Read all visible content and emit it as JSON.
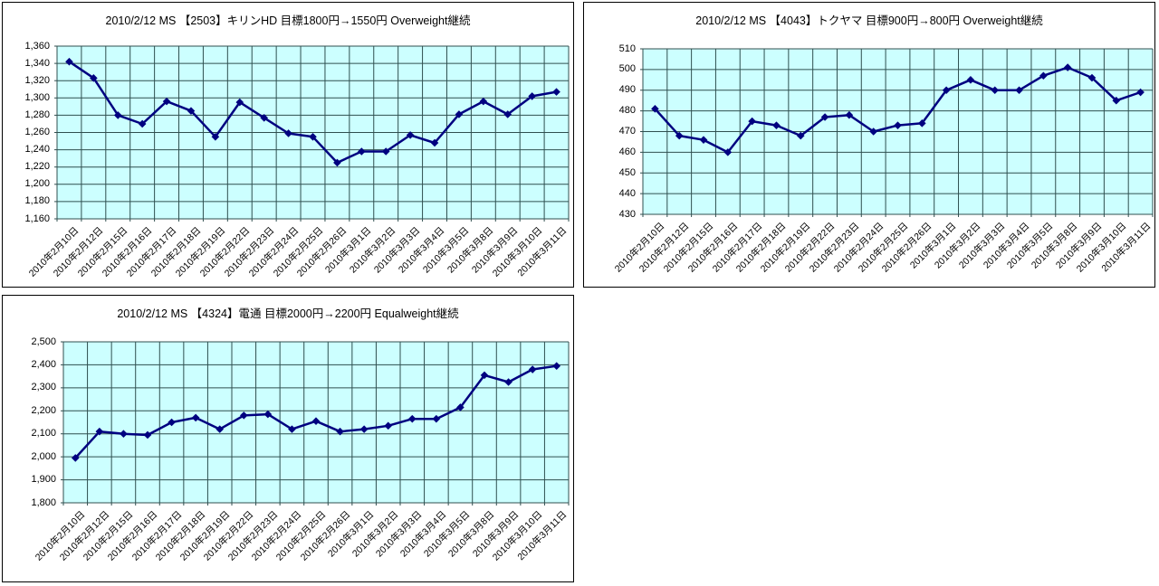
{
  "colors": {
    "plot_bg": "#CCFFFF",
    "grid": "#2F4F4F",
    "line": "#000080",
    "marker": "#000080",
    "panel_border": "#000000",
    "text": "#000000"
  },
  "categories": [
    "2010年2月10日",
    "2010年2月12日",
    "2010年2月15日",
    "2010年2月16日",
    "2010年2月17日",
    "2010年2月18日",
    "2010年2月19日",
    "2010年2月22日",
    "2010年2月23日",
    "2010年2月24日",
    "2010年2月25日",
    "2010年2月26日",
    "2010年3月1日",
    "2010年3月2日",
    "2010年3月3日",
    "2010年3月4日",
    "2010年3月5日",
    "2010年3月8日",
    "2010年3月9日",
    "2010年3月10日",
    "2010年3月11日"
  ],
  "chart_data": [
    {
      "type": "line",
      "title": "2010/2/12 MS 【2503】キリンHD 目標1800円→1550円 Overweight継続",
      "categories_ref": "categories",
      "values": [
        1342,
        1323,
        1280,
        1270,
        1296,
        1285,
        1255,
        1295,
        1277,
        1259,
        1255,
        1225,
        1238,
        1238,
        1257,
        1248,
        1281,
        1296,
        1281,
        1302,
        1307
      ],
      "ylim": [
        1160,
        1360
      ],
      "ytick_step": 20,
      "ytick_labels": [
        "1,360",
        "1,340",
        "1,320",
        "1,300",
        "1,280",
        "1,260",
        "1,240",
        "1,220",
        "1,200",
        "1,180",
        "1,160"
      ],
      "xlabel": "",
      "ylabel": "",
      "grid": true,
      "legend": "none",
      "marker": "diamond"
    },
    {
      "type": "line",
      "title": "2010/2/12 MS 【4043】トクヤマ 目標900円→800円 Overweight継続",
      "categories_ref": "categories",
      "values": [
        481,
        468,
        466,
        460,
        475,
        473,
        468,
        477,
        478,
        470,
        473,
        474,
        490,
        495,
        490,
        490,
        497,
        501,
        496,
        485,
        489
      ],
      "ylim": [
        430,
        510
      ],
      "ytick_step": 10,
      "ytick_labels": [
        "510",
        "500",
        "490",
        "480",
        "470",
        "460",
        "450",
        "440",
        "430"
      ],
      "xlabel": "",
      "ylabel": "",
      "grid": true,
      "legend": "none",
      "marker": "diamond"
    },
    {
      "type": "line",
      "title": "2010/2/12 MS 【4324】電通 目標2000円→2200円 Equalweight継続",
      "categories_ref": "categories",
      "values": [
        1995,
        2110,
        2100,
        2095,
        2150,
        2170,
        2120,
        2180,
        2185,
        2120,
        2155,
        2110,
        2120,
        2135,
        2165,
        2165,
        2215,
        2355,
        2325,
        2380,
        2395
      ],
      "ylim": [
        1800,
        2500
      ],
      "ytick_step": 100,
      "ytick_labels": [
        "2,500",
        "2,400",
        "2,300",
        "2,200",
        "2,100",
        "2,000",
        "1,900",
        "1,800"
      ],
      "xlabel": "",
      "ylabel": "",
      "grid": true,
      "legend": "none",
      "marker": "diamond"
    }
  ]
}
